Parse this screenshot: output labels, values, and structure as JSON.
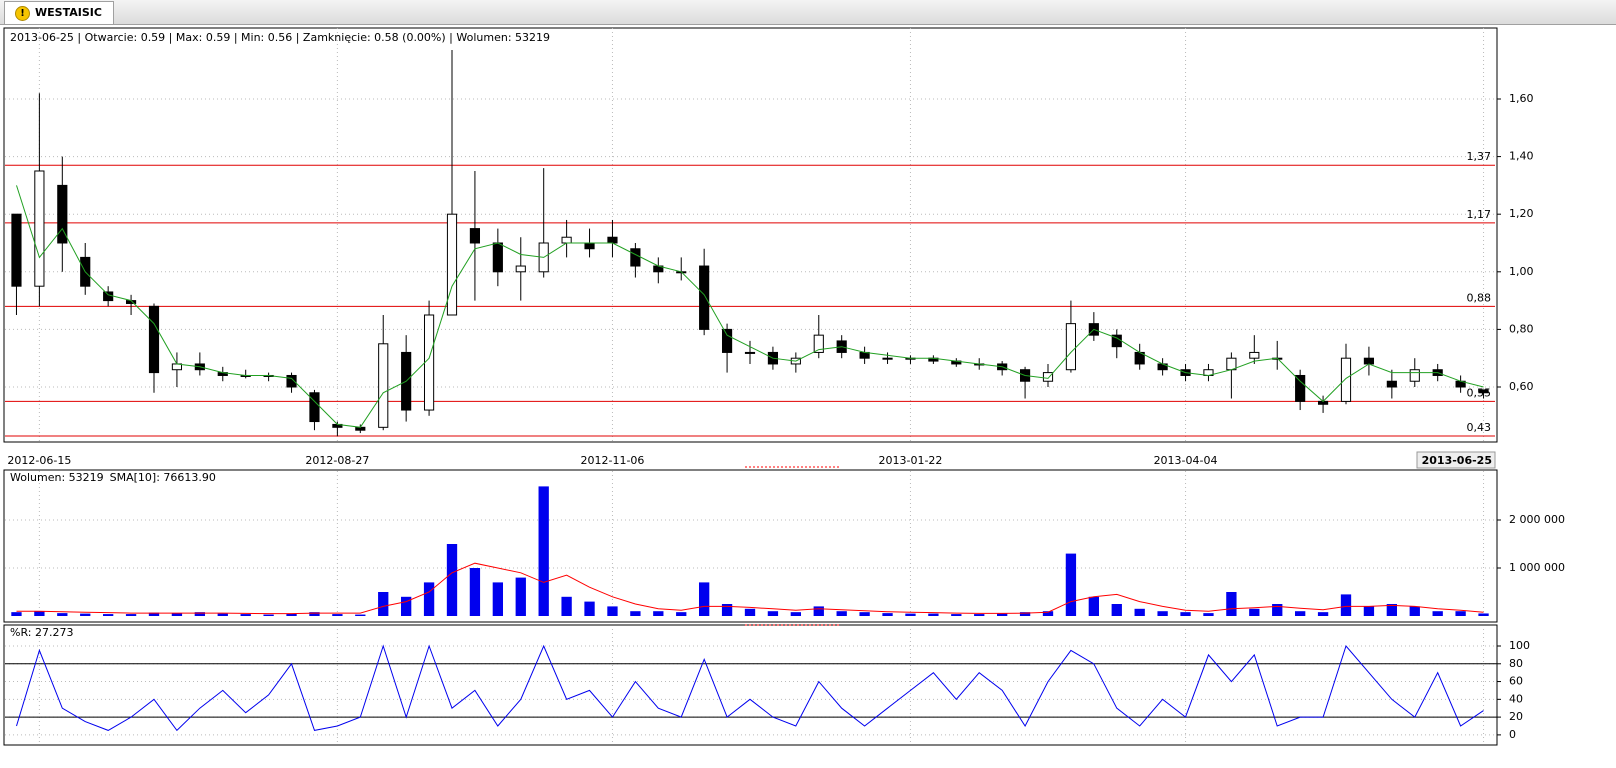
{
  "tab": {
    "title": "WESTAISIC"
  },
  "chart_data": [
    {
      "type": "candlestick",
      "title": "2013-06-25 | Otwarcie: 0.59 | Max: 0.59 | Min: 0.56 | Zamknięcie: 0.58 (0.00%)  | Wolumen: 53219",
      "categories": [
        null,
        "2012-06-15",
        null,
        null,
        null,
        null,
        null,
        null,
        null,
        null,
        null,
        null,
        null,
        null,
        "2012-08-27",
        null,
        null,
        null,
        null,
        null,
        null,
        null,
        null,
        null,
        null,
        null,
        "2012-11-06",
        null,
        null,
        null,
        null,
        null,
        null,
        null,
        null,
        null,
        null,
        null,
        null,
        "2013-01-22",
        null,
        null,
        null,
        null,
        null,
        null,
        null,
        null,
        null,
        null,
        null,
        "2013-04-04",
        null,
        null,
        null,
        null,
        null,
        null,
        null,
        null,
        null,
        null,
        null,
        null,
        "2013-06-25"
      ],
      "open": [
        1.2,
        0.95,
        1.3,
        1.05,
        0.93,
        0.9,
        0.88,
        0.66,
        0.68,
        0.65,
        0.64,
        0.64,
        0.64,
        0.58,
        0.47,
        0.46,
        0.46,
        0.72,
        0.52,
        0.85,
        1.15,
        1.1,
        1.0,
        1.0,
        1.1,
        1.1,
        1.12,
        1.08,
        1.02,
        1.0,
        1.02,
        0.8,
        0.72,
        0.72,
        0.68,
        0.72,
        0.76,
        0.72,
        0.7,
        0.7,
        0.7,
        0.69,
        0.68,
        0.68,
        0.66,
        0.62,
        0.66,
        0.82,
        0.78,
        0.72,
        0.68,
        0.66,
        0.64,
        0.66,
        0.7,
        0.7,
        0.64,
        0.55,
        0.55,
        0.7,
        0.62,
        0.62,
        0.66,
        0.62,
        0.59
      ],
      "high": [
        1.2,
        1.62,
        1.4,
        1.1,
        0.95,
        0.92,
        0.89,
        0.72,
        0.72,
        0.67,
        0.66,
        0.65,
        0.65,
        0.59,
        0.48,
        0.47,
        0.85,
        0.78,
        0.9,
        1.77,
        1.35,
        1.15,
        1.12,
        1.36,
        1.18,
        1.15,
        1.18,
        1.1,
        1.05,
        1.05,
        1.08,
        0.82,
        0.76,
        0.74,
        0.72,
        0.85,
        0.78,
        0.74,
        0.72,
        0.71,
        0.71,
        0.7,
        0.7,
        0.69,
        0.67,
        0.68,
        0.9,
        0.86,
        0.8,
        0.75,
        0.7,
        0.68,
        0.68,
        0.72,
        0.78,
        0.76,
        0.66,
        0.57,
        0.75,
        0.74,
        0.66,
        0.7,
        0.68,
        0.64,
        0.59
      ],
      "low": [
        0.85,
        0.88,
        1.0,
        0.92,
        0.88,
        0.85,
        0.58,
        0.6,
        0.64,
        0.62,
        0.63,
        0.62,
        0.58,
        0.45,
        0.43,
        0.44,
        0.45,
        0.48,
        0.5,
        0.85,
        0.9,
        0.95,
        0.9,
        0.98,
        1.05,
        1.05,
        1.05,
        0.98,
        0.96,
        0.97,
        0.78,
        0.65,
        0.68,
        0.66,
        0.65,
        0.7,
        0.7,
        0.68,
        0.68,
        0.68,
        0.68,
        0.67,
        0.66,
        0.64,
        0.56,
        0.6,
        0.65,
        0.76,
        0.7,
        0.66,
        0.64,
        0.62,
        0.62,
        0.56,
        0.68,
        0.66,
        0.52,
        0.51,
        0.54,
        0.64,
        0.56,
        0.6,
        0.62,
        0.58,
        0.56
      ],
      "close": [
        0.95,
        1.35,
        1.1,
        0.95,
        0.9,
        0.89,
        0.65,
        0.68,
        0.66,
        0.64,
        0.64,
        0.64,
        0.6,
        0.48,
        0.46,
        0.45,
        0.75,
        0.52,
        0.85,
        1.2,
        1.1,
        1.0,
        1.02,
        1.1,
        1.12,
        1.08,
        1.1,
        1.02,
        1.0,
        1.0,
        0.8,
        0.72,
        0.72,
        0.68,
        0.7,
        0.78,
        0.72,
        0.7,
        0.7,
        0.7,
        0.69,
        0.68,
        0.68,
        0.66,
        0.62,
        0.65,
        0.82,
        0.78,
        0.74,
        0.68,
        0.66,
        0.64,
        0.66,
        0.7,
        0.72,
        0.7,
        0.55,
        0.54,
        0.7,
        0.68,
        0.6,
        0.66,
        0.64,
        0.6,
        0.58
      ],
      "up_color": "#ffffff",
      "down_color": "#000000",
      "ma": {
        "color": "#22a022",
        "values": [
          1.3,
          1.05,
          1.15,
          1.0,
          0.92,
          0.9,
          0.82,
          0.68,
          0.67,
          0.65,
          0.64,
          0.64,
          0.63,
          0.55,
          0.47,
          0.46,
          0.58,
          0.62,
          0.7,
          0.95,
          1.08,
          1.1,
          1.06,
          1.05,
          1.1,
          1.1,
          1.1,
          1.06,
          1.02,
          1.0,
          0.92,
          0.78,
          0.74,
          0.7,
          0.69,
          0.73,
          0.74,
          0.72,
          0.71,
          0.7,
          0.7,
          0.69,
          0.68,
          0.67,
          0.64,
          0.63,
          0.72,
          0.8,
          0.77,
          0.72,
          0.68,
          0.65,
          0.64,
          0.66,
          0.69,
          0.7,
          0.62,
          0.55,
          0.63,
          0.68,
          0.65,
          0.65,
          0.65,
          0.62,
          0.6
        ]
      },
      "levels": [
        {
          "value": 1.37,
          "label": "1,37"
        },
        {
          "value": 1.17,
          "label": "1,17"
        },
        {
          "value": 0.88,
          "label": "0,88"
        },
        {
          "value": 0.55,
          "label": "0,55"
        },
        {
          "value": 0.43,
          "label": "0,43"
        }
      ],
      "level_color": "#e00000",
      "ylim": [
        0.4125,
        1.843
      ],
      "yticks": [
        {
          "value": 0.6,
          "label": "0,60"
        },
        {
          "value": 0.8,
          "label": "0,80"
        },
        {
          "value": 1.0,
          "label": "1,00"
        },
        {
          "value": 1.2,
          "label": "1,20"
        },
        {
          "value": 1.4,
          "label": "1,40"
        },
        {
          "value": 1.6,
          "label": "1,60"
        }
      ],
      "grid": true
    },
    {
      "type": "bar",
      "series": [
        {
          "name": "Wolumen: 53219",
          "color": "#0000ee",
          "values": [
            80000,
            100000,
            60000,
            50000,
            40000,
            40000,
            70000,
            60000,
            80000,
            50000,
            40000,
            30000,
            50000,
            80000,
            40000,
            30000,
            500000,
            400000,
            700000,
            1500000,
            1000000,
            700000,
            800000,
            2700000,
            400000,
            300000,
            200000,
            100000,
            100000,
            80000,
            700000,
            250000,
            150000,
            100000,
            80000,
            200000,
            100000,
            80000,
            60000,
            50000,
            50000,
            40000,
            40000,
            50000,
            80000,
            100000,
            1300000,
            400000,
            250000,
            150000,
            100000,
            80000,
            60000,
            500000,
            150000,
            250000,
            100000,
            80000,
            450000,
            200000,
            250000,
            200000,
            100000,
            100000,
            53219
          ]
        },
        {
          "name": "SMA[10]: 76613.90",
          "color": "#ff0000",
          "type": "line",
          "values": [
            100000,
            100000,
            90000,
            80000,
            70000,
            60000,
            60000,
            60000,
            60000,
            60000,
            55000,
            50000,
            50000,
            60000,
            60000,
            60000,
            200000,
            300000,
            500000,
            900000,
            1100000,
            1000000,
            900000,
            700000,
            850000,
            600000,
            400000,
            250000,
            150000,
            120000,
            200000,
            200000,
            180000,
            150000,
            120000,
            150000,
            130000,
            110000,
            90000,
            80000,
            70000,
            60000,
            55000,
            55000,
            60000,
            80000,
            300000,
            400000,
            450000,
            300000,
            200000,
            120000,
            100000,
            150000,
            170000,
            200000,
            160000,
            130000,
            200000,
            200000,
            220000,
            200000,
            150000,
            120000,
            76613.9
          ]
        }
      ],
      "ylim": [
        0,
        3000000
      ],
      "yticks": [
        {
          "value": 1000000,
          "label": "1 000 000"
        },
        {
          "value": 2000000,
          "label": "2 000 000"
        }
      ],
      "grid": true
    },
    {
      "type": "line",
      "series": [
        {
          "name": "%R: 27.273",
          "color": "#0000ee",
          "values": [
            10,
            95,
            30,
            15,
            5,
            20,
            40,
            5,
            30,
            50,
            25,
            45,
            80,
            5,
            10,
            20,
            100,
            20,
            100,
            30,
            50,
            10,
            40,
            100,
            40,
            50,
            20,
            60,
            30,
            20,
            85,
            20,
            40,
            20,
            10,
            60,
            30,
            10,
            30,
            50,
            70,
            40,
            70,
            50,
            10,
            60,
            95,
            80,
            30,
            10,
            40,
            20,
            90,
            60,
            90,
            10,
            20,
            20,
            100,
            70,
            40,
            20,
            70,
            10,
            27.273
          ]
        }
      ],
      "levels": [
        80,
        20
      ],
      "level_color": "#000000",
      "ylim": [
        -8,
        118
      ],
      "yticks": [
        0,
        20,
        40,
        60,
        80,
        100
      ],
      "grid": true
    }
  ]
}
